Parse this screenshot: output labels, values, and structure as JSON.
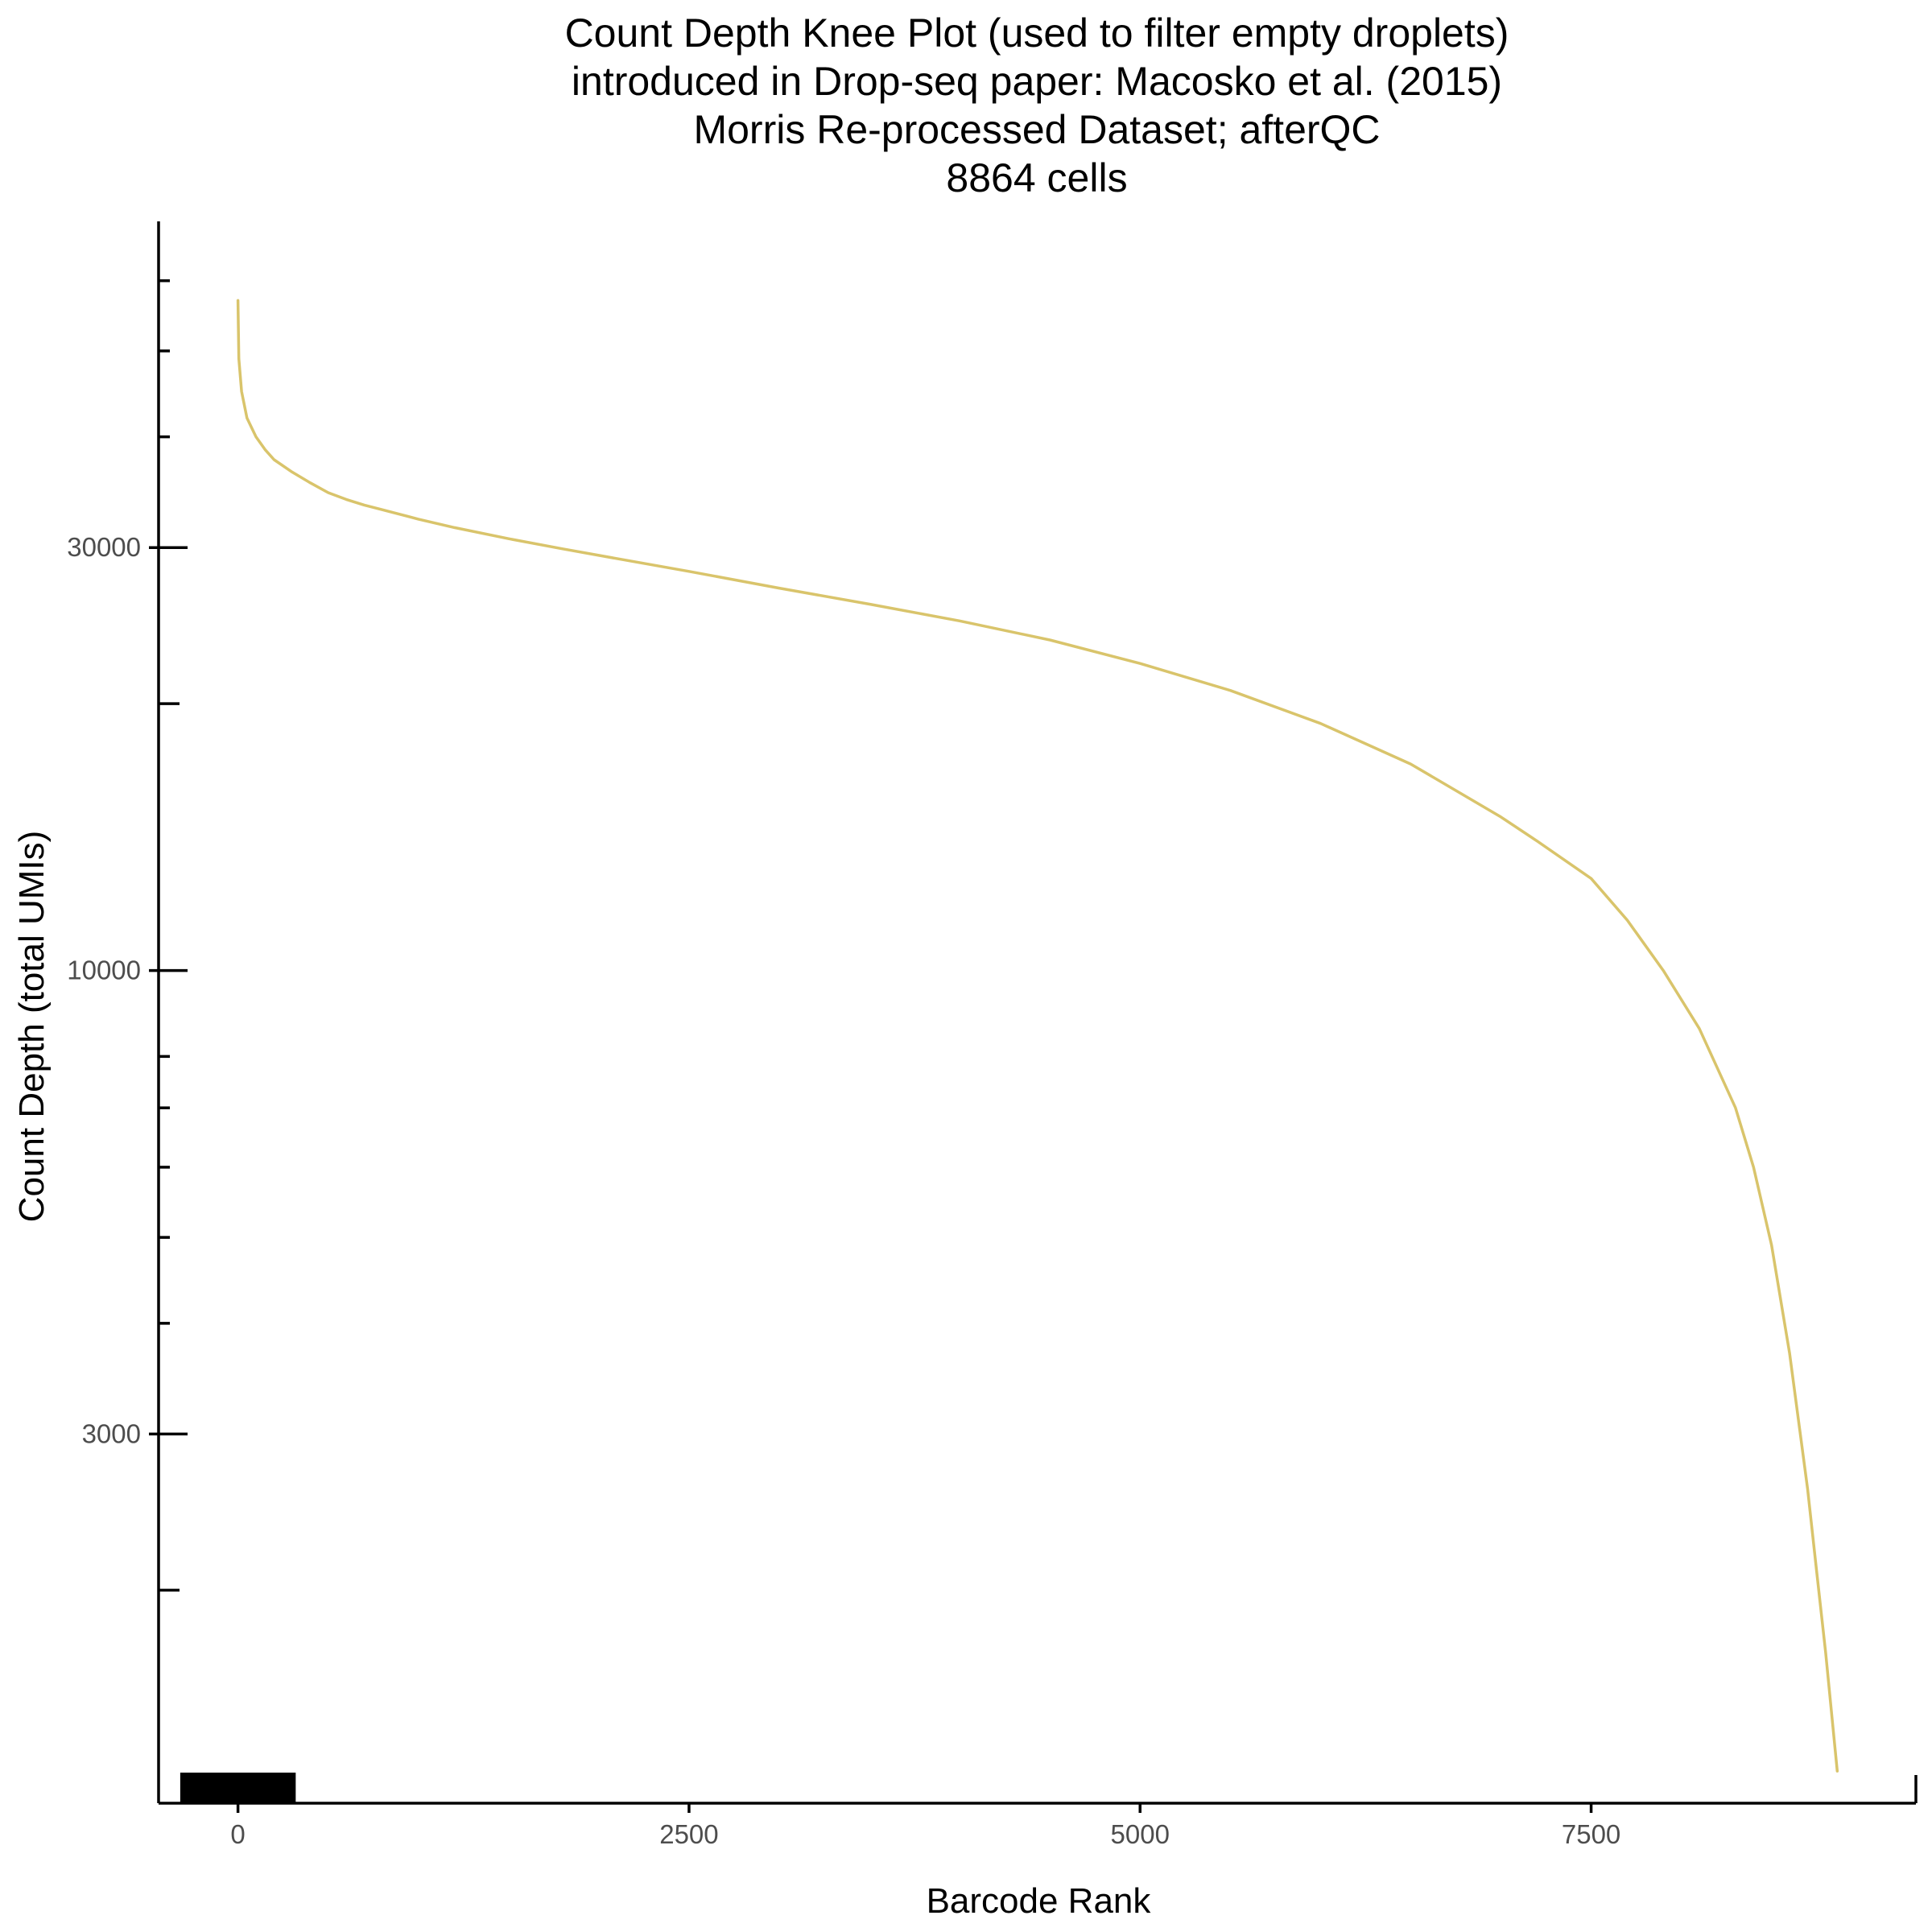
{
  "chart_data": {
    "type": "line",
    "title_lines": [
      "Count Depth Knee Plot (used to filter empty droplets)",
      "introduced in Drop-seq paper: Macosko et al. (2015)",
      "Morris Re-processed Dataset; afterQC",
      "8864 cells"
    ],
    "xlabel": "Barcode Rank",
    "ylabel": "Count Depth (total UMIs)",
    "y_scale": "log",
    "xlim": [
      -440,
      9300
    ],
    "ylim": [
      1150,
      70000
    ],
    "x_ticks": [
      0,
      2500,
      5000,
      7500
    ],
    "x_tick_labels": [
      "0",
      "2500",
      "5000",
      "7500"
    ],
    "y_ticks": [
      3000,
      10000,
      30000
    ],
    "y_tick_labels": [
      "3000",
      "10000",
      "30000"
    ],
    "y_minor_ticks": [
      2000,
      4000,
      5000,
      6000,
      7000,
      8000,
      20000,
      40000,
      50000,
      60000
    ],
    "grid": false,
    "legend": "none",
    "series": [
      {
        "color": "#d9c46b",
        "x": [
          0,
          5,
          20,
          50,
          100,
          150,
          200,
          300,
          400,
          500,
          600,
          700,
          800,
          1000,
          1200,
          1500,
          1800,
          2000,
          2500,
          3000,
          3500,
          4000,
          4500,
          5000,
          5500,
          6000,
          6500,
          7000,
          7200,
          7500,
          7700,
          7900,
          8100,
          8300,
          8400,
          8500,
          8600,
          8700,
          8750,
          8800,
          8864
        ],
        "y": [
          57000,
          49000,
          45000,
          42000,
          40000,
          38700,
          37700,
          36500,
          35500,
          34600,
          34000,
          33500,
          33100,
          32300,
          31600,
          30700,
          29900,
          29400,
          28200,
          27000,
          25900,
          24800,
          23600,
          22200,
          20700,
          19000,
          17100,
          14900,
          14000,
          12700,
          11400,
          10000,
          8600,
          7000,
          6000,
          4900,
          3700,
          2600,
          2100,
          1700,
          1250
        ]
      }
    ]
  }
}
